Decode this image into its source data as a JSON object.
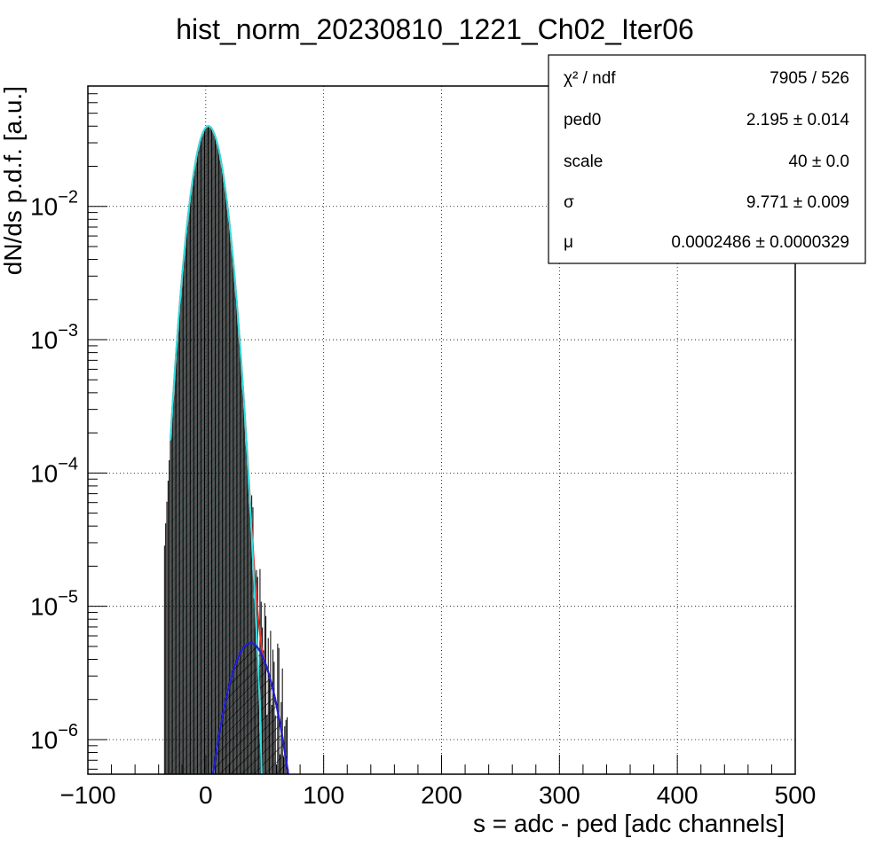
{
  "chart_data": {
    "type": "line",
    "title": "hist_norm_20230810_1221_Ch02_Iter06",
    "xlabel": "s = adc - ped [adc channels]",
    "ylabel": "dN/ds p.d.f. [a.u.]",
    "xlim": [
      -100,
      500
    ],
    "ylim": [
      5.5e-07,
      0.08
    ],
    "yscale": "log",
    "grid": true,
    "x_ticks": [
      {
        "value": -100,
        "label": "−100"
      },
      {
        "value": 0,
        "label": "0"
      },
      {
        "value": 100,
        "label": "100"
      },
      {
        "value": 200,
        "label": "200"
      },
      {
        "value": 300,
        "label": "300"
      },
      {
        "value": 400,
        "label": "400"
      },
      {
        "value": 500,
        "label": "500"
      }
    ],
    "y_ticks": [
      {
        "value": 0.01,
        "base": "10",
        "exp": "−2"
      },
      {
        "value": 0.001,
        "base": "10",
        "exp": "−3"
      },
      {
        "value": 0.0001,
        "base": "10",
        "exp": "−4"
      },
      {
        "value": 1e-05,
        "base": "10",
        "exp": "−5"
      },
      {
        "value": 1e-06,
        "base": "10",
        "exp": "−6"
      }
    ],
    "series": [
      {
        "role": "total_fit",
        "color": "#e8302f",
        "x_range": [
          -30,
          80
        ]
      },
      {
        "role": "pedestal_component",
        "color": "#33dddd",
        "x_range": [
          -30,
          50
        ]
      },
      {
        "role": "signal_component",
        "color": "#1f1fd6",
        "x_range": [
          0,
          85
        ]
      },
      {
        "role": "data_histogram",
        "color": "#000000",
        "x_range": [
          -35,
          70
        ]
      }
    ],
    "params": {
      "ped0": 2.195,
      "sigma": 9.771,
      "scale": 40,
      "amplitude": 0.04,
      "signal_mu": 38,
      "signal_sigma": 15,
      "signal_peak": 5.3e-06
    },
    "stats": {
      "rows": [
        {
          "label": "χ² / ndf",
          "value": "7905 / 526"
        },
        {
          "label": "ped0",
          "value": "2.195 ± 0.014"
        },
        {
          "label": "scale",
          "value": "40 ± 0.0"
        },
        {
          "label": "σ",
          "value": "9.771 ± 0.009"
        },
        {
          "label": "μ",
          "value": "0.0002486 ± 0.0000329"
        }
      ]
    }
  }
}
